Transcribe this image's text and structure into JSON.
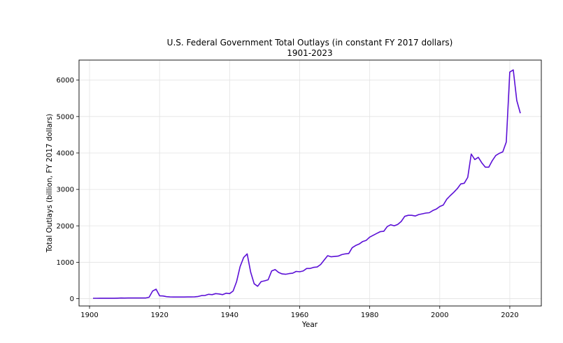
{
  "chart_data": {
    "type": "line",
    "title": "U.S. Federal Government Total Outlays (in constant FY 2017 dollars)",
    "subtitle": "1901-2023",
    "xlabel": "Year",
    "ylabel": "Total Outlays (billion, FY 2017 dollars)",
    "xlim": [
      1897,
      2029
    ],
    "ylim": [
      -200,
      6550
    ],
    "xticks": [
      1900,
      1920,
      1940,
      1960,
      1980,
      2000,
      2020
    ],
    "yticks": [
      0,
      1000,
      2000,
      3000,
      4000,
      5000,
      6000
    ],
    "grid": true,
    "legend": "none",
    "series_color": "#5b0fd6",
    "series": [
      {
        "x": [
          1901,
          1902,
          1903,
          1904,
          1905,
          1906,
          1907,
          1908,
          1909,
          1910,
          1911,
          1912,
          1913,
          1914,
          1915,
          1916,
          1917,
          1918,
          1919,
          1920,
          1921,
          1922,
          1923,
          1924,
          1925,
          1926,
          1927,
          1928,
          1929,
          1930,
          1931,
          1932,
          1933,
          1934,
          1935,
          1936,
          1937,
          1938,
          1939,
          1940,
          1941,
          1942,
          1943,
          1944,
          1945,
          1946,
          1947,
          1948,
          1949,
          1950,
          1951,
          1952,
          1953,
          1954,
          1955,
          1956,
          1957,
          1958,
          1959,
          1960,
          1961,
          1962,
          1963,
          1964,
          1965,
          1966,
          1967,
          1968,
          1969,
          1970,
          1971,
          1972,
          1973,
          1974,
          1975,
          1976,
          1977,
          1978,
          1979,
          1980,
          1981,
          1982,
          1983,
          1984,
          1985,
          1986,
          1987,
          1988,
          1989,
          1990,
          1991,
          1992,
          1993,
          1994,
          1995,
          1996,
          1997,
          1998,
          1999,
          2000,
          2001,
          2002,
          2003,
          2004,
          2005,
          2006,
          2007,
          2008,
          2009,
          2010,
          2011,
          2012,
          2013,
          2014,
          2015,
          2016,
          2017,
          2018,
          2019,
          2020,
          2021,
          2022,
          2023
        ],
        "y": [
          10,
          10,
          12,
          13,
          12,
          12,
          13,
          14,
          18,
          17,
          18,
          18,
          18,
          19,
          18,
          18,
          40,
          210,
          260,
          80,
          75,
          55,
          48,
          45,
          45,
          45,
          45,
          47,
          48,
          52,
          60,
          85,
          90,
          120,
          110,
          140,
          130,
          110,
          150,
          140,
          210,
          470,
          880,
          1130,
          1230,
          730,
          410,
          340,
          470,
          490,
          520,
          760,
          800,
          720,
          680,
          670,
          690,
          700,
          750,
          740,
          760,
          830,
          830,
          860,
          870,
          940,
          1060,
          1180,
          1150,
          1160,
          1170,
          1210,
          1230,
          1240,
          1400,
          1460,
          1500,
          1570,
          1600,
          1690,
          1740,
          1790,
          1840,
          1850,
          1980,
          2030,
          2000,
          2040,
          2120,
          2260,
          2290,
          2290,
          2270,
          2310,
          2330,
          2350,
          2360,
          2420,
          2460,
          2530,
          2570,
          2730,
          2830,
          2920,
          3020,
          3150,
          3170,
          3330,
          3970,
          3820,
          3880,
          3730,
          3610,
          3610,
          3790,
          3930,
          3990,
          4030,
          4300,
          6220,
          6280,
          5440,
          5090
        ]
      }
    ]
  }
}
